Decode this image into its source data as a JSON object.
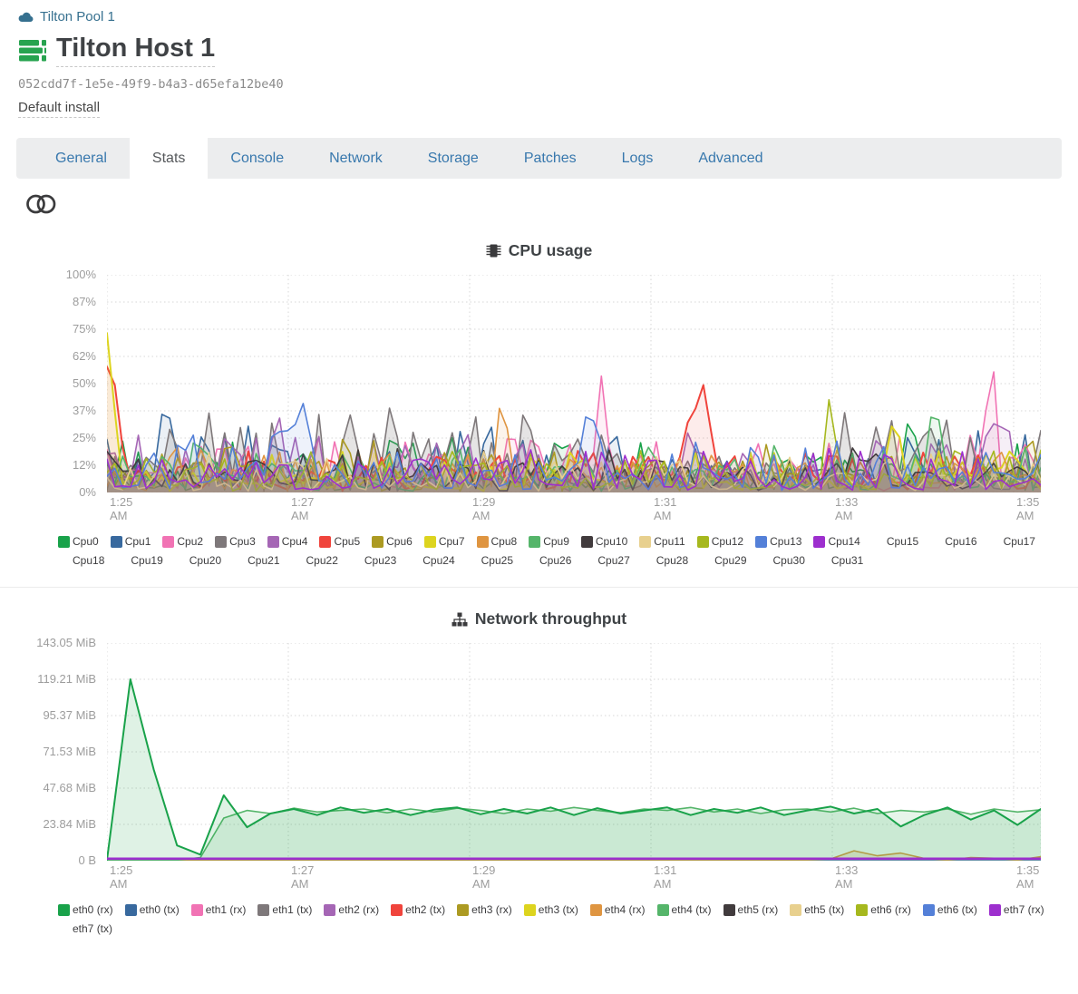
{
  "header": {
    "pool": {
      "label": "Tilton Pool 1"
    },
    "host": {
      "title": "Tilton Host 1"
    },
    "uuid": "052cdd7f-1e5e-49f9-b4a3-d65efa12be40",
    "install_label": "Default install"
  },
  "tabs": {
    "active": "Stats",
    "items": [
      "General",
      "Stats",
      "Console",
      "Network",
      "Storage",
      "Patches",
      "Logs",
      "Advanced"
    ]
  },
  "colors": {
    "pool_link": "#36708f",
    "host_icon_green": "#27a34f",
    "tab_link_blue": "#3878ad",
    "axis_label_gray": "#9d9d9d"
  },
  "charts": {
    "cpu": {
      "title": "CPU usage",
      "icon": "microchip-icon",
      "y_ticks": [
        "100%",
        "87%",
        "75%",
        "62%",
        "50%",
        "37%",
        "25%",
        "12%",
        "0%"
      ],
      "x_ticks": [
        "1:25 AM",
        "1:27 AM",
        "1:29 AM",
        "1:31 AM",
        "1:33 AM",
        "1:35 AM"
      ],
      "legend": [
        {
          "label": "Cpu0",
          "color": "#19a24a"
        },
        {
          "label": "Cpu1",
          "color": "#38699e"
        },
        {
          "label": "Cpu2",
          "color": "#f173b4"
        },
        {
          "label": "Cpu3",
          "color": "#7e787a"
        },
        {
          "label": "Cpu4",
          "color": "#a566b5"
        },
        {
          "label": "Cpu5",
          "color": "#f0443c"
        },
        {
          "label": "Cpu6",
          "color": "#ac9a22"
        },
        {
          "label": "Cpu7",
          "color": "#ddd41f"
        },
        {
          "label": "Cpu8",
          "color": "#df9541"
        },
        {
          "label": "Cpu9",
          "color": "#55b56a"
        },
        {
          "label": "Cpu10",
          "color": "#413b3d"
        },
        {
          "label": "Cpu11",
          "color": "#e8d08e"
        },
        {
          "label": "Cpu12",
          "color": "#a6b81e"
        },
        {
          "label": "Cpu13",
          "color": "#5480d8"
        },
        {
          "label": "Cpu14",
          "color": "#9d2fce"
        },
        {
          "label": "Cpu15",
          "color": null
        },
        {
          "label": "Cpu16",
          "color": null
        },
        {
          "label": "Cpu17",
          "color": null
        },
        {
          "label": "Cpu18",
          "color": null
        },
        {
          "label": "Cpu19",
          "color": null
        },
        {
          "label": "Cpu20",
          "color": null
        },
        {
          "label": "Cpu21",
          "color": null
        },
        {
          "label": "Cpu22",
          "color": null
        },
        {
          "label": "Cpu23",
          "color": null
        },
        {
          "label": "Cpu24",
          "color": null
        },
        {
          "label": "Cpu25",
          "color": null
        },
        {
          "label": "Cpu26",
          "color": null
        },
        {
          "label": "Cpu27",
          "color": null
        },
        {
          "label": "Cpu28",
          "color": null
        },
        {
          "label": "Cpu29",
          "color": null
        },
        {
          "label": "Cpu30",
          "color": null
        },
        {
          "label": "Cpu31",
          "color": null
        }
      ],
      "plot": {
        "ymax": 100,
        "points": 120,
        "series": [
          {
            "name": "Cpu0",
            "color": "#19a24a",
            "base": 5,
            "amp": 20,
            "seed": 101,
            "peaks": [
              {
                "p": 0.31,
                "v": 16,
                "w": 0.012
              },
              {
                "p": 0.862,
                "v": 22,
                "w": 0.012
              }
            ]
          },
          {
            "name": "Cpu1",
            "color": "#38699e",
            "base": 5,
            "amp": 24,
            "seed": 202,
            "peaks": [
              {
                "p": 0.062,
                "v": 30,
                "w": 0.01
              }
            ]
          },
          {
            "name": "Cpu2",
            "color": "#f173b4",
            "base": 6,
            "amp": 18,
            "seed": 303,
            "peaks": [
              {
                "p": 0.53,
                "v": 32,
                "w": 0.008
              },
              {
                "p": 0.948,
                "v": 33,
                "w": 0.008
              }
            ]
          },
          {
            "name": "Cpu3",
            "color": "#7e787a",
            "base": 8,
            "amp": 28,
            "seed": 404,
            "fill": 0.2,
            "peaks": [
              {
                "p": 0.26,
                "v": 24,
                "w": 0.012
              }
            ]
          },
          {
            "name": "Cpu4",
            "color": "#a566b5",
            "base": 5,
            "amp": 22,
            "seed": 505,
            "peaks": [
              {
                "p": 0.183,
                "v": 26,
                "w": 0.01
              },
              {
                "p": 0.955,
                "v": 27,
                "w": 0.01
              }
            ]
          },
          {
            "name": "Cpu5",
            "color": "#f0443c",
            "base": 4,
            "amp": 17,
            "seed": 606,
            "width": 2,
            "peaks": [
              {
                "p": 0.003,
                "v": 47,
                "w": 0.012
              },
              {
                "p": 0.633,
                "v": 35,
                "w": 0.018
              }
            ]
          },
          {
            "name": "Cpu6",
            "color": "#ac9a22",
            "base": 5,
            "amp": 17,
            "seed": 707
          },
          {
            "name": "Cpu7",
            "color": "#ddd41f",
            "base": 4,
            "amp": 16,
            "seed": 808,
            "width": 2,
            "peaks": [
              {
                "p": 0.0,
                "v": 56,
                "w": 0.01
              },
              {
                "p": 0.845,
                "v": 24,
                "w": 0.008
              }
            ]
          },
          {
            "name": "Cpu8",
            "color": "#df9541",
            "base": 4,
            "amp": 17,
            "seed": 909,
            "peaks": [
              {
                "p": 0.425,
                "v": 26,
                "w": 0.01
              }
            ]
          },
          {
            "name": "Cpu9",
            "color": "#55b56a",
            "base": 5,
            "amp": 17,
            "seed": 1010,
            "peaks": [
              {
                "p": 0.885,
                "v": 26,
                "w": 0.01
              }
            ]
          },
          {
            "name": "Cpu10",
            "color": "#413b3d",
            "base": 6,
            "amp": 13,
            "seed": 1111,
            "fill": 0.18
          },
          {
            "name": "Cpu11",
            "color": "#e8d08e",
            "base": 4,
            "amp": 13,
            "seed": 1212
          },
          {
            "name": "Cpu12",
            "color": "#a6b81e",
            "base": 4,
            "amp": 16,
            "seed": 1313,
            "peaks": [
              {
                "p": 0.775,
                "v": 28,
                "w": 0.008
              }
            ]
          },
          {
            "name": "Cpu13",
            "color": "#5480d8",
            "base": 5,
            "amp": 19,
            "seed": 1414,
            "peaks": [
              {
                "p": 0.2,
                "v": 26,
                "w": 0.022
              },
              {
                "p": 0.518,
                "v": 25,
                "w": 0.014
              }
            ]
          },
          {
            "name": "Cpu14",
            "color": "#9d2fce",
            "base": 4,
            "amp": 15,
            "seed": 1515
          }
        ]
      }
    },
    "network": {
      "title": "Network throughput",
      "icon": "sitemap-icon",
      "y_ticks": [
        "143.05 MiB",
        "119.21 MiB",
        "95.37 MiB",
        "71.53 MiB",
        "47.68 MiB",
        "23.84 MiB",
        "0 B"
      ],
      "x_ticks": [
        "1:25 AM",
        "1:27 AM",
        "1:29 AM",
        "1:31 AM",
        "1:33 AM",
        "1:35 AM"
      ],
      "legend": [
        {
          "label": "eth0 (rx)",
          "color": "#19a24a"
        },
        {
          "label": "eth0 (tx)",
          "color": "#38699e"
        },
        {
          "label": "eth1 (rx)",
          "color": "#f173b4"
        },
        {
          "label": "eth1 (tx)",
          "color": "#7e787a"
        },
        {
          "label": "eth2 (rx)",
          "color": "#a566b5"
        },
        {
          "label": "eth2 (tx)",
          "color": "#f0443c"
        },
        {
          "label": "eth3 (rx)",
          "color": "#ac9a22"
        },
        {
          "label": "eth3 (tx)",
          "color": "#ddd41f"
        },
        {
          "label": "eth4 (rx)",
          "color": "#df9541"
        },
        {
          "label": "eth4 (tx)",
          "color": "#55b56a"
        },
        {
          "label": "eth5 (rx)",
          "color": "#413b3d"
        },
        {
          "label": "eth5 (tx)",
          "color": "#e8d08e"
        },
        {
          "label": "eth6 (rx)",
          "color": "#a6b81e"
        },
        {
          "label": "eth6 (tx)",
          "color": "#5480d8"
        },
        {
          "label": "eth7 (rx)",
          "color": "#9d2fce"
        },
        {
          "label": "eth7 (tx)",
          "color": null
        }
      ],
      "plot": {
        "ymax": 143.05,
        "points": 41,
        "series": [
          {
            "name": "eth0 (tx)",
            "color": "#38699e",
            "flat": 0.25
          },
          {
            "name": "eth1 (rx)",
            "color": "#f173b4",
            "flat": 0.2
          },
          {
            "name": "eth1 (tx)",
            "color": "#7e787a",
            "flat": 0.2
          },
          {
            "name": "eth2 (rx)",
            "color": "#a566b5",
            "flat": 0.2
          },
          {
            "name": "eth2 (tx)",
            "color": "#f0443c",
            "flat": 0.3
          },
          {
            "name": "eth3 (rx)",
            "color": "#ac9a22",
            "flat": 0.2
          },
          {
            "name": "eth3 (tx)",
            "color": "#ddd41f",
            "flat": 0.2
          },
          {
            "name": "eth5 (rx)",
            "color": "#413b3d",
            "flat": 0.2
          },
          {
            "name": "eth5 (tx)",
            "color": "#e8d08e",
            "flat": 0.2
          },
          {
            "name": "eth6 (rx)",
            "color": "#a6b81e",
            "flat": 0.2
          },
          {
            "name": "eth6 (tx)",
            "color": "#5480d8",
            "flat": 0.2
          },
          {
            "name": "eth4 (rx)",
            "color": "#df9541",
            "fill": 0.18,
            "values": [
              0.3,
              0.5,
              1.6,
              0.5,
              0.3,
              0.3,
              0.4,
              0.3,
              0.3,
              0.4,
              0.3,
              0.3,
              0.4,
              0.3,
              0.3,
              0.4,
              0.3,
              0.3,
              0.4,
              0.3,
              0.3,
              0.4,
              0.3,
              0.3,
              0.4,
              0.3,
              0.3,
              0.4,
              0.3,
              0.3,
              0.5,
              1.2,
              6.5,
              3.2,
              5,
              1.5,
              0.4,
              2,
              1.6,
              0.4,
              2.6
            ]
          },
          {
            "name": "eth4 (tx)",
            "color": "#55b56a",
            "fill": 0.14,
            "values": [
              0.2,
              0.3,
              0.3,
              0.4,
              2,
              28,
              33,
              31,
              34.5,
              32,
              33,
              34,
              31.5,
              34,
              32,
              34.5,
              33,
              31,
              34,
              32.5,
              35,
              33,
              31.5,
              34,
              33,
              35,
              32,
              34,
              31,
              33.5,
              34,
              32,
              34.5,
              31,
              33,
              32,
              34,
              30.5,
              34,
              32,
              33.5
            ]
          },
          {
            "name": "eth0 (rx)",
            "color": "#19a24a",
            "fill": 0.14,
            "width": 2,
            "values": [
              0.4,
              119.2,
              60,
              10,
              4,
              43,
              22,
              31,
              34,
              30,
              35,
              31.5,
              34,
              30,
              33.5,
              35,
              30.5,
              34,
              31,
              35,
              30,
              34.5,
              31,
              33,
              35,
              30,
              34,
              31.5,
              35,
              30,
              33,
              35.5,
              31,
              34,
              22.5,
              30,
              35,
              27,
              33,
              23.5,
              34
            ]
          },
          {
            "name": "eth7 (rx)",
            "color": "#9d2fce",
            "width": 2.5,
            "flat": 1.3
          }
        ]
      }
    }
  }
}
